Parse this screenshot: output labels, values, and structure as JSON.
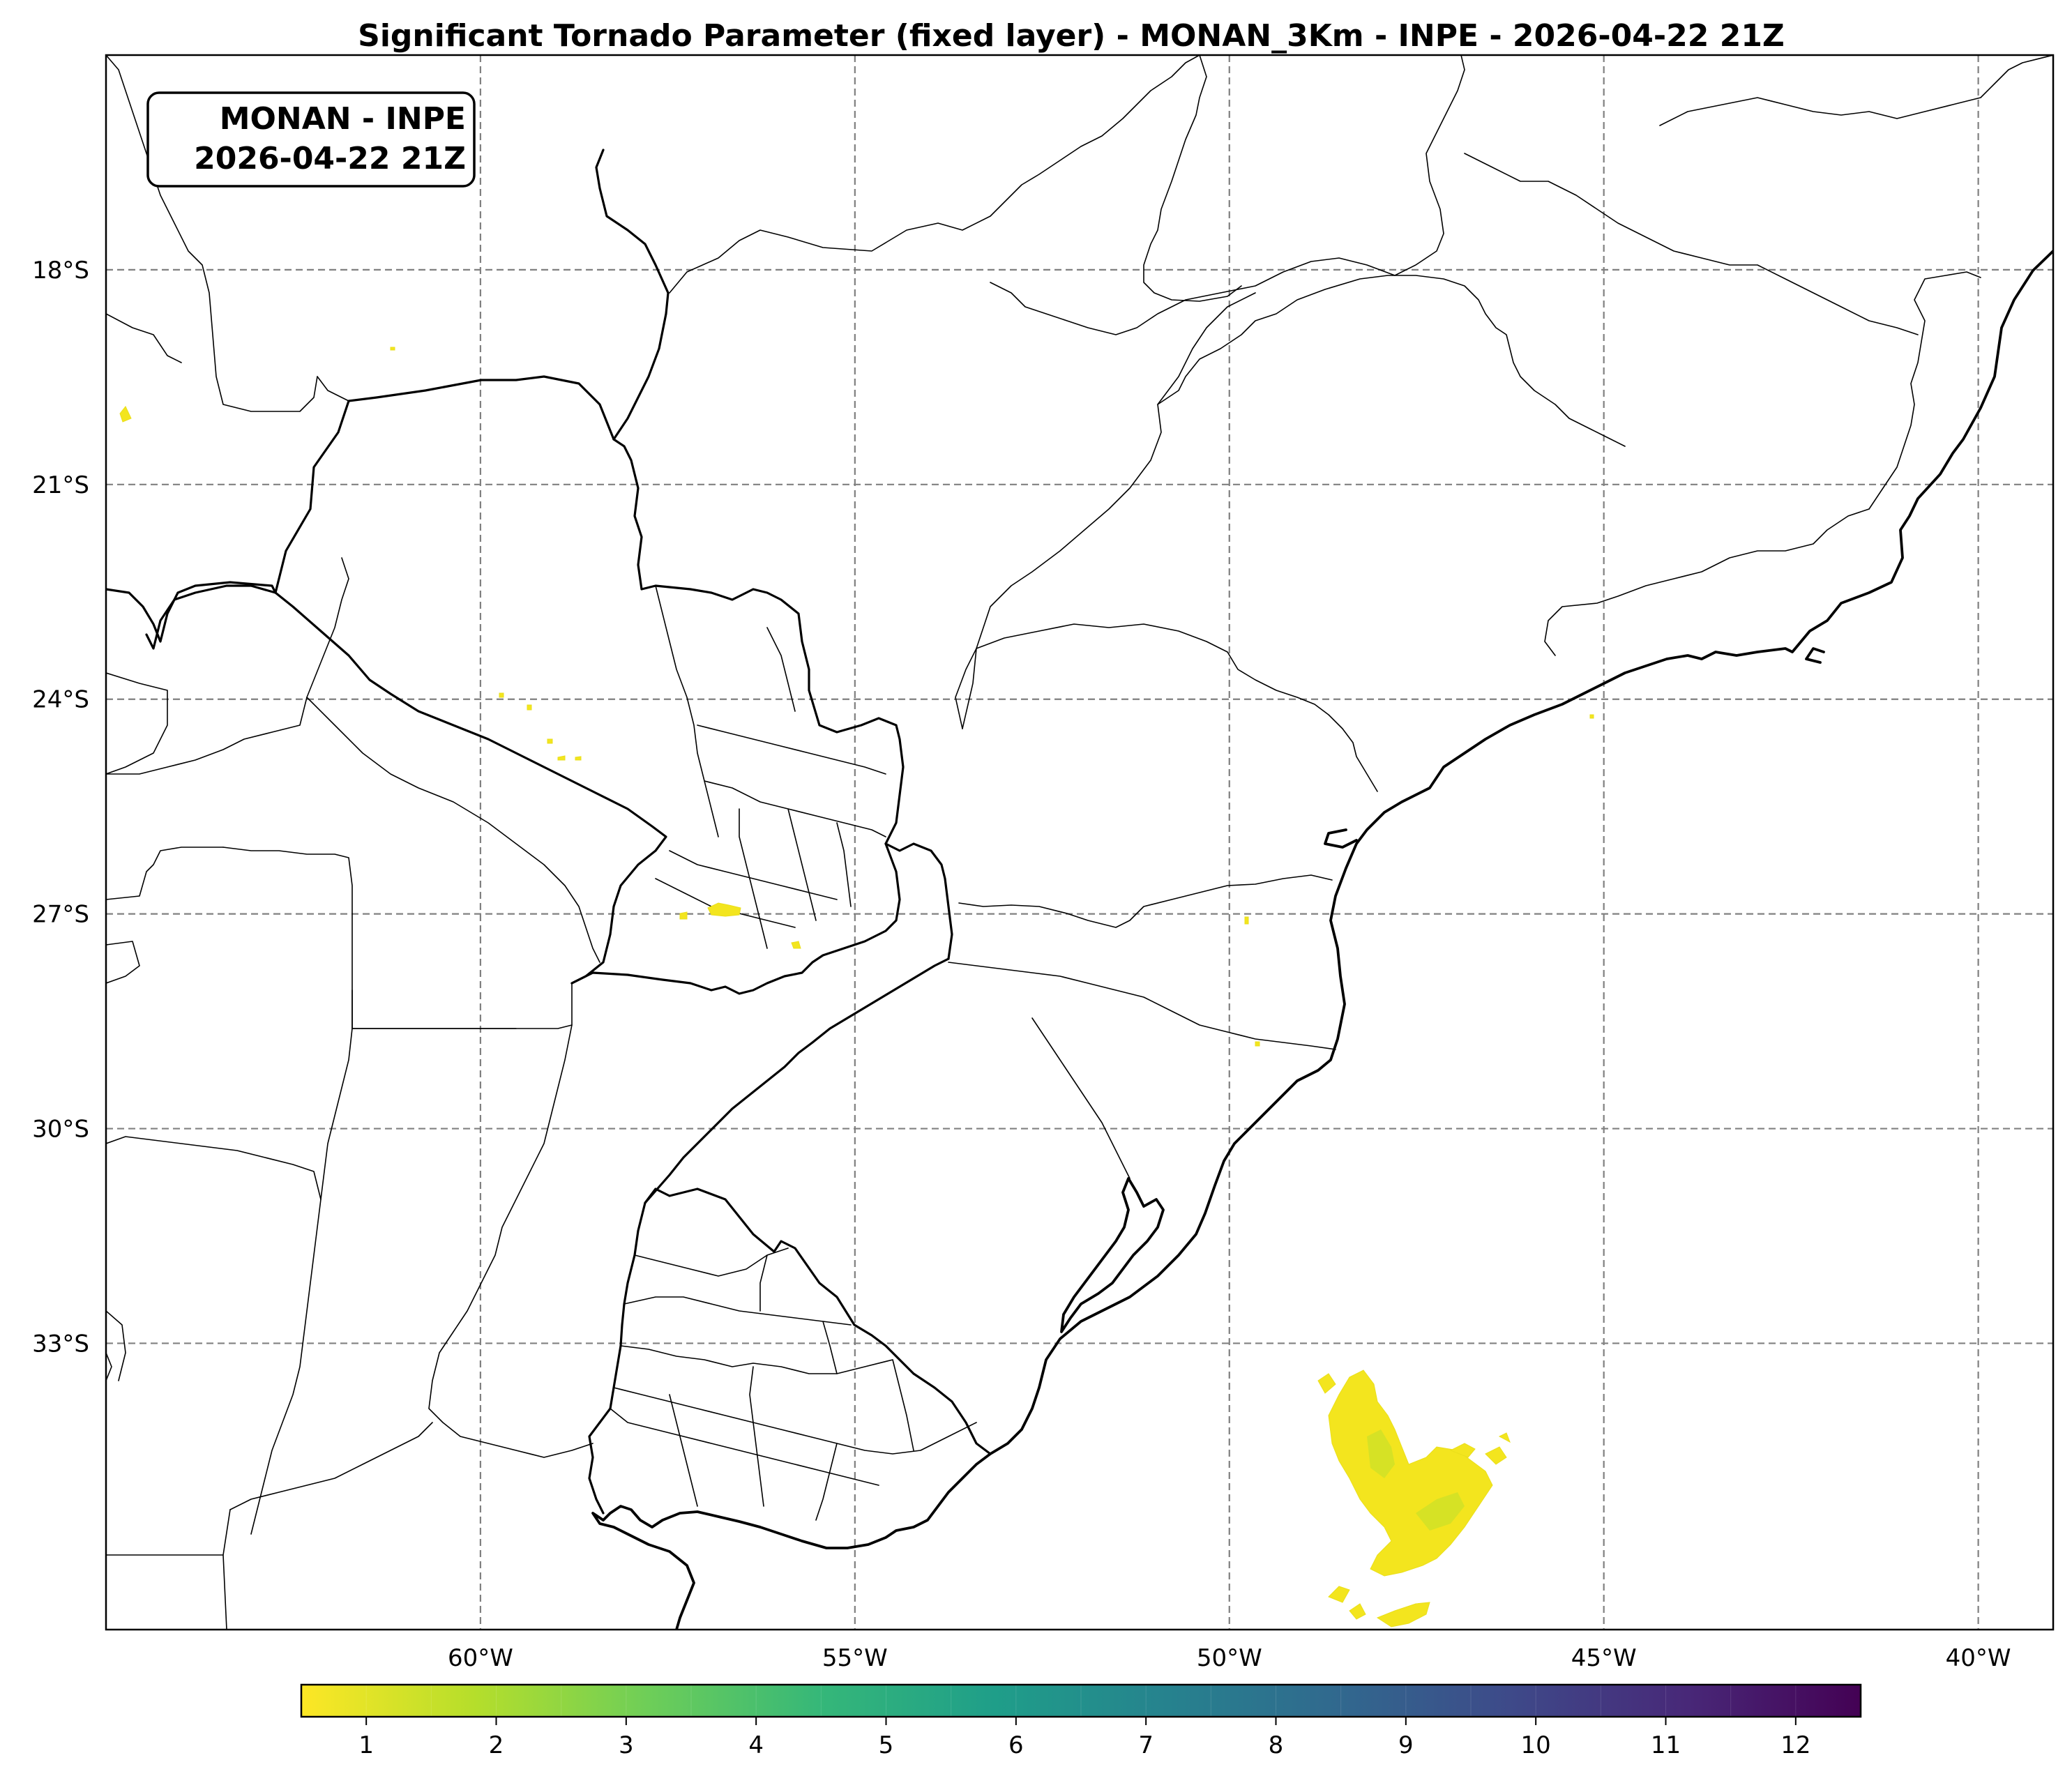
{
  "title": "Significant Tornado Parameter (fixed layer) - MONAN_3Km - INPE - 2026-04-22 21Z",
  "info_box": {
    "line1": "MONAN - INPE",
    "line2": "2026-04-22 21Z"
  },
  "map": {
    "lon_range": [
      -65,
      -39
    ],
    "lat_range": [
      -37,
      -15
    ],
    "lon_ticks": [
      {
        "value": -60,
        "label": "60°W"
      },
      {
        "value": -55,
        "label": "55°W"
      },
      {
        "value": -50,
        "label": "50°W"
      },
      {
        "value": -45,
        "label": "45°W"
      },
      {
        "value": -40,
        "label": "40°W"
      }
    ],
    "lat_ticks": [
      {
        "value": -18,
        "label": "18°S"
      },
      {
        "value": -21,
        "label": "21°S"
      },
      {
        "value": -24,
        "label": "24°S"
      },
      {
        "value": -27,
        "label": "27°S"
      },
      {
        "value": -30,
        "label": "30°S"
      },
      {
        "value": -33,
        "label": "33°S"
      }
    ],
    "gridlines": true
  },
  "colorbar": {
    "colormap": "viridis (reversed)",
    "range": [
      0.5,
      12.5
    ],
    "ticks": [
      {
        "value": 1,
        "label": "1"
      },
      {
        "value": 2,
        "label": "2"
      },
      {
        "value": 3,
        "label": "3"
      },
      {
        "value": 4,
        "label": "4"
      },
      {
        "value": 5,
        "label": "5"
      },
      {
        "value": 6,
        "label": "6"
      },
      {
        "value": 7,
        "label": "7"
      },
      {
        "value": 8,
        "label": "8"
      },
      {
        "value": 9,
        "label": "9"
      },
      {
        "value": 10,
        "label": "10"
      },
      {
        "value": 11,
        "label": "11"
      },
      {
        "value": 12,
        "label": "12"
      }
    ],
    "colors_low_to_high": [
      "#fde725",
      "#b5de2b",
      "#6ece58",
      "#35b779",
      "#1f9e89",
      "#26828e",
      "#31688e",
      "#3e4989",
      "#482878",
      "#440154"
    ]
  }
}
